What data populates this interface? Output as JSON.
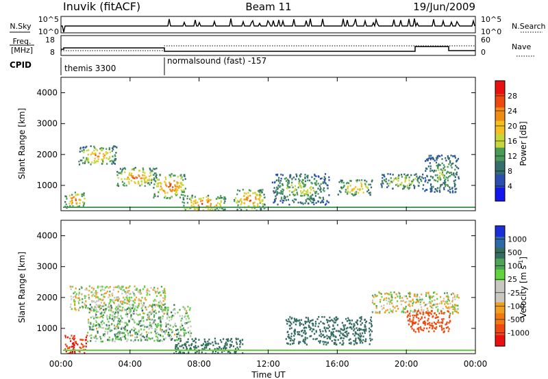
{
  "header": {
    "station": "Inuvik (fitACF)",
    "beam": "Beam 11",
    "date": "19/Jun/2009"
  },
  "top_panels": {
    "nsky": {
      "label": "N.Sky",
      "ticks": [
        "10^5",
        "10^0"
      ],
      "right_ticks": [
        "10^5",
        "10^0"
      ],
      "right_label": "N.Search"
    },
    "freq": {
      "label_line1": "Freq.",
      "label_line2": "[MHz]",
      "ticks": [
        "18",
        "8"
      ],
      "right_ticks": [
        "60",
        "0"
      ],
      "right_label": "Nave"
    },
    "cpid": {
      "label": "CPID",
      "segments": [
        "themis 3300",
        "normalsound (fast) -157"
      ]
    }
  },
  "axes": {
    "ylabel": "Slant Range [km]",
    "xlabel": "Time UT",
    "xticks": [
      "00:00",
      "04:00",
      "08:00",
      "12:00",
      "16:00",
      "20:00",
      "00:00"
    ],
    "yticks": [
      "1000",
      "2000",
      "3000",
      "4000"
    ]
  },
  "colorbars": {
    "power": {
      "label": "Power [dB]",
      "ticks": [
        "28",
        "24",
        "20",
        "16",
        "12",
        "8",
        "4"
      ],
      "colors": [
        "#1515ee",
        "#2a4fb0",
        "#356e6a",
        "#4a9a58",
        "#c7d63a",
        "#f2c020",
        "#f08c12",
        "#ee4a10",
        "#e81010"
      ]
    },
    "velocity": {
      "label": "Velocity [m s",
      "label_sup": "-1",
      "label_end": "]",
      "ticks": [
        "1000",
        "500",
        "100",
        "25",
        "-25",
        "-100",
        "-500",
        "-1000"
      ],
      "colors": [
        "#1a2fd6",
        "#2f6aa8",
        "#356e5e",
        "#4fa458",
        "#62d23e",
        "#c8c8c0",
        "#c8c8c0",
        "#f0a020",
        "#f07a10",
        "#ee4a10",
        "#e81010"
      ]
    }
  },
  "chart_data": {
    "type": "heatmap",
    "title": "Inuvik (fitACF) Beam 11 19/Jun/2009",
    "xlabel": "Time UT",
    "ylabel": "Slant Range [km]",
    "x_range_hours": [
      0,
      24
    ],
    "y_range_km": [
      180,
      4500
    ],
    "cpid_segments": [
      {
        "name": "themis 3300",
        "start_hour": 0,
        "end_hour": 6
      },
      {
        "name": "normalsound (fast) -157",
        "start_hour": 6,
        "end_hour": 24
      }
    ],
    "power_regions_dB": [
      {
        "t": [
          0.2,
          1.4
        ],
        "r": [
          300,
          800
        ],
        "p": 26
      },
      {
        "t": [
          1.0,
          3.2
        ],
        "r": [
          1700,
          2300
        ],
        "p": 24
      },
      {
        "t": [
          3.2,
          5.5
        ],
        "r": [
          1000,
          1600
        ],
        "p": 26
      },
      {
        "t": [
          5.3,
          7.2
        ],
        "r": [
          600,
          1400
        ],
        "p": 28
      },
      {
        "t": [
          7.0,
          9.5
        ],
        "r": [
          150,
          700
        ],
        "p": 28
      },
      {
        "t": [
          10.0,
          11.8
        ],
        "r": [
          200,
          900
        ],
        "p": 26
      },
      {
        "t": [
          12.2,
          15.5
        ],
        "r": [
          400,
          1400
        ],
        "p": 16
      },
      {
        "t": [
          16.0,
          18.0
        ],
        "r": [
          700,
          1200
        ],
        "p": 22
      },
      {
        "t": [
          18.5,
          21.0
        ],
        "r": [
          900,
          1400
        ],
        "p": 18
      },
      {
        "t": [
          21.0,
          23.0
        ],
        "r": [
          800,
          2000
        ],
        "p": 14
      }
    ],
    "velocity_regions_mps": [
      {
        "t": [
          0.2,
          1.5
        ],
        "r": [
          200,
          800
        ],
        "v": -700
      },
      {
        "t": [
          0.5,
          6.0
        ],
        "r": [
          1600,
          2400
        ],
        "v": 0
      },
      {
        "t": [
          1.5,
          7.5
        ],
        "r": [
          600,
          1800
        ],
        "v": 50
      },
      {
        "t": [
          6.5,
          10.5
        ],
        "r": [
          200,
          700
        ],
        "v": 200
      },
      {
        "t": [
          13.0,
          18.0
        ],
        "r": [
          500,
          1400
        ],
        "v": 200
      },
      {
        "t": [
          18.0,
          23.0
        ],
        "r": [
          1500,
          2200
        ],
        "v": 0
      },
      {
        "t": [
          20.0,
          22.5
        ],
        "r": [
          900,
          1600
        ],
        "v": -400
      }
    ]
  }
}
